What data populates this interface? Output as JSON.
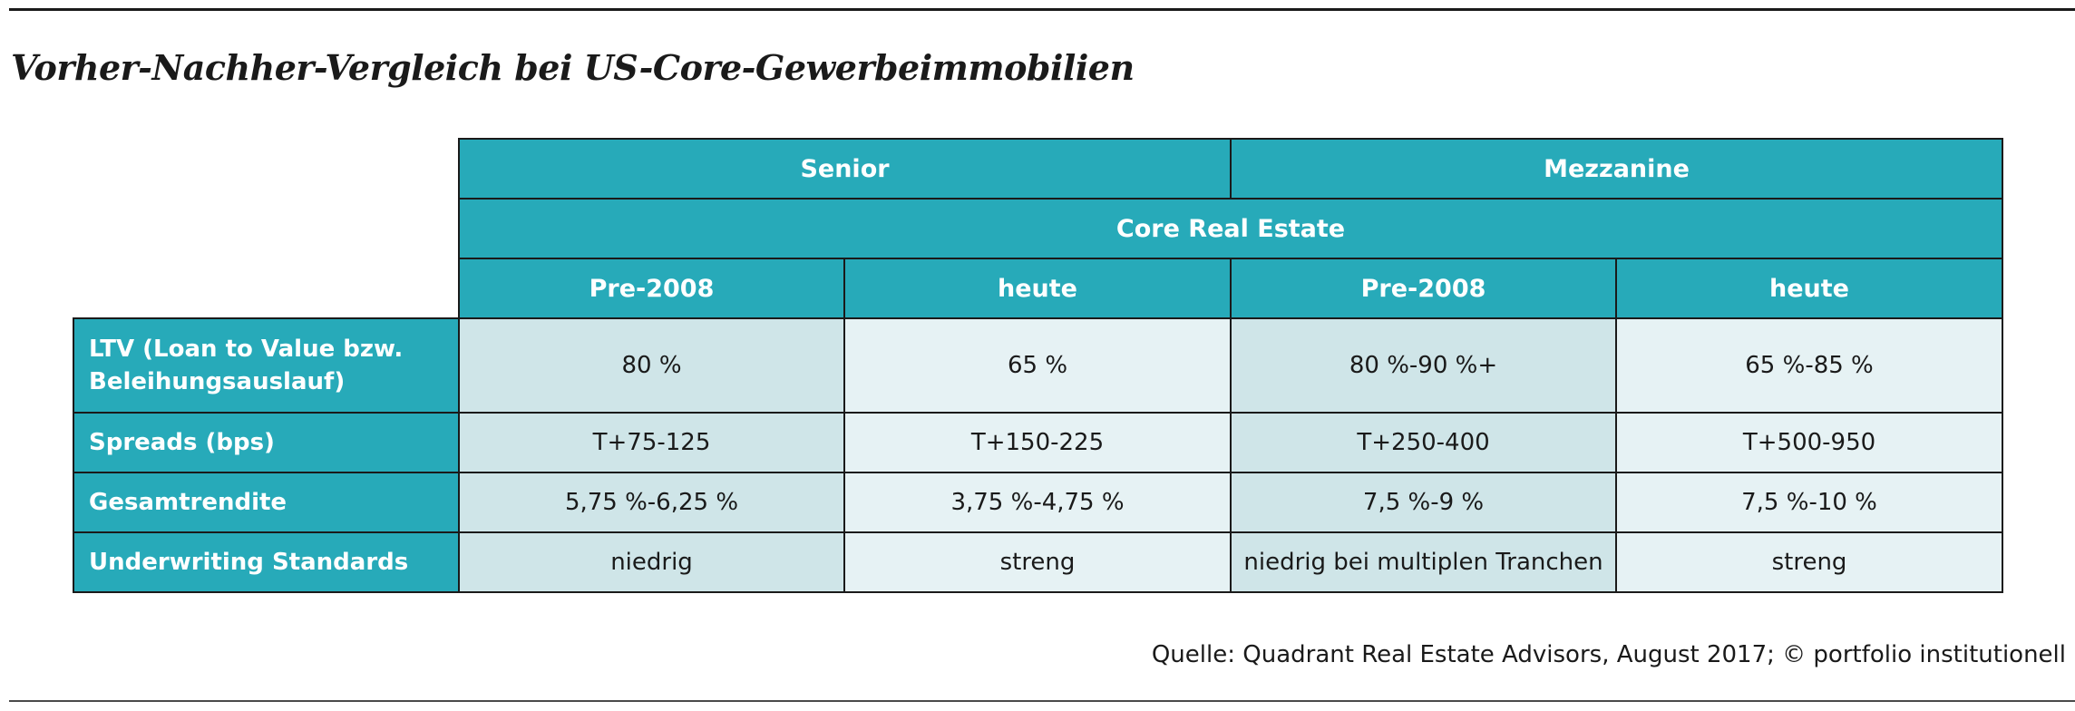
{
  "title": "Vorher-Nachher-Vergleich bei US-Core-Gewerbeimmobilien",
  "source": "Quelle: Quadrant Real Estate Advisors, August 2017; © portfolio institutionell",
  "table": {
    "group_headers": [
      "Senior",
      "Mezzanine"
    ],
    "span_header": "Core Real Estate",
    "column_headers": [
      "Pre-2008",
      "heute",
      "Pre-2008",
      "heute"
    ],
    "rows": [
      {
        "label": "LTV (Loan to Value bzw. Beleihungsauslauf)",
        "values": [
          "80 %",
          "65 %",
          "80 %-90 %+",
          "65 %-85 %"
        ]
      },
      {
        "label": "Spreads (bps)",
        "values": [
          "T+75-125",
          "T+150-225",
          "T+250-400",
          "T+500-950"
        ]
      },
      {
        "label": "Gesamtrendite",
        "values": [
          "5,75 %-6,25 %",
          "3,75 %-4,75 %",
          "7,5 %-9 %",
          "7,5 %-10 %"
        ]
      },
      {
        "label": "Underwriting Standards",
        "values": [
          "niedrig",
          "streng",
          "niedrig bei multiplen Tranchen",
          "streng"
        ]
      }
    ]
  },
  "colors": {
    "header_teal": "#27aab9",
    "cell_dark": "#cfe5e8",
    "cell_light": "#e6f2f4"
  }
}
